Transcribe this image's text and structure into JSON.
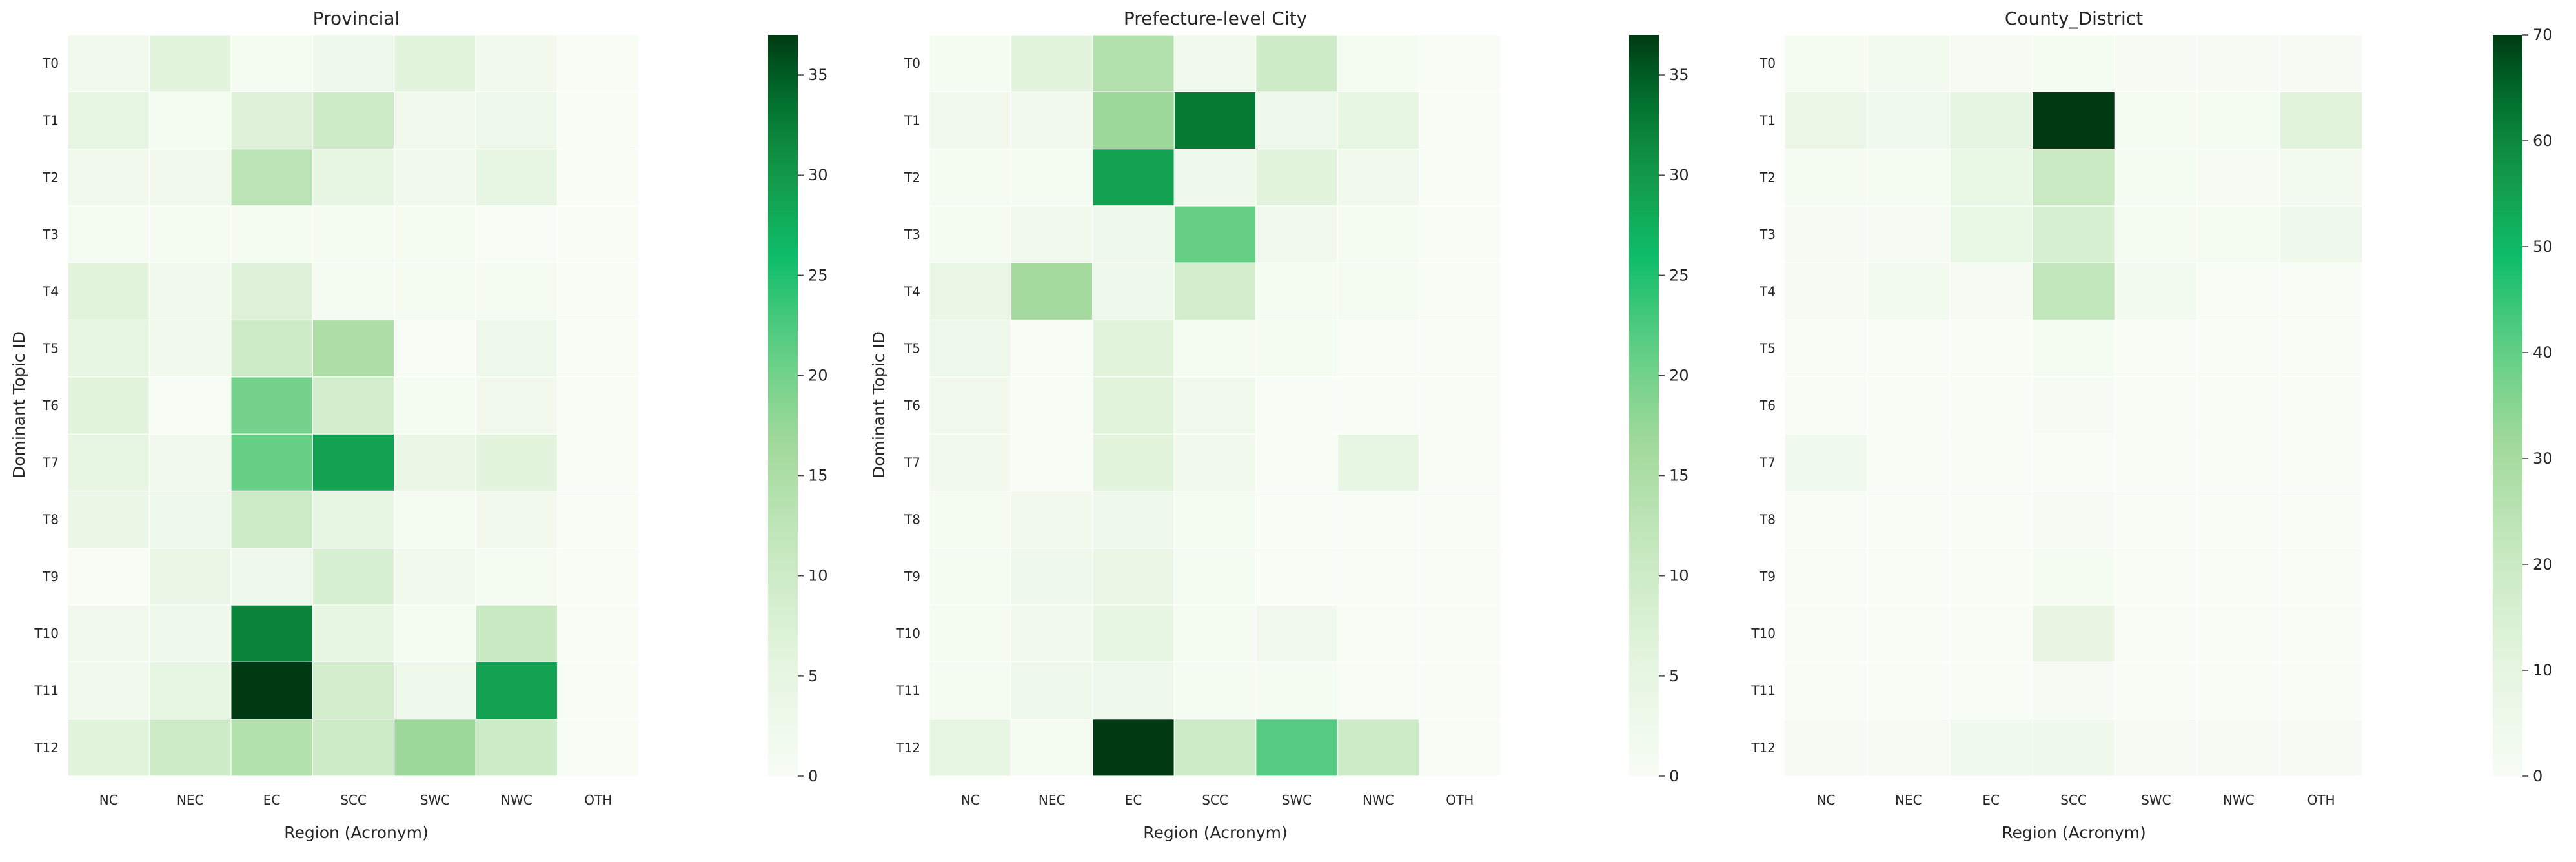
{
  "chart_data": [
    {
      "type": "heatmap",
      "title": "Provincial",
      "xlabel": "Region (Acronym)",
      "ylabel": "Dominant Topic ID",
      "x_categories": [
        "NC",
        "NEC",
        "EC",
        "SCC",
        "SWC",
        "NWC",
        "OTH"
      ],
      "y_categories": [
        "T0",
        "T1",
        "T2",
        "T3",
        "T4",
        "T5",
        "T6",
        "T7",
        "T8",
        "T9",
        "T10",
        "T11",
        "T12"
      ],
      "values": [
        [
          2,
          6,
          1,
          3,
          6,
          2,
          0
        ],
        [
          5,
          1,
          7,
          10,
          2,
          3,
          0
        ],
        [
          2,
          2,
          13,
          5,
          2,
          5,
          0
        ],
        [
          1,
          1,
          1,
          1,
          1,
          0,
          0
        ],
        [
          6,
          2,
          7,
          1,
          1,
          1,
          0
        ],
        [
          5,
          2,
          10,
          15,
          0,
          3,
          0
        ],
        [
          6,
          0,
          20,
          9,
          1,
          2,
          0
        ],
        [
          5,
          2,
          21,
          29,
          4,
          6,
          0
        ],
        [
          4,
          3,
          10,
          5,
          1,
          2,
          0
        ],
        [
          0,
          4,
          3,
          8,
          2,
          1,
          0
        ],
        [
          2,
          3,
          32,
          5,
          1,
          11,
          0
        ],
        [
          2,
          5,
          37,
          9,
          3,
          29,
          0
        ],
        [
          6,
          10,
          14,
          10,
          17,
          10,
          0
        ]
      ],
      "colorbar": {
        "min": 0,
        "max": 37,
        "ticks": [
          0,
          5,
          10,
          15,
          20,
          25,
          30,
          35
        ]
      }
    },
    {
      "type": "heatmap",
      "title": "Prefecture-level City",
      "xlabel": "Region (Acronym)",
      "ylabel": "Dominant Topic ID",
      "x_categories": [
        "NC",
        "NEC",
        "EC",
        "SCC",
        "SWC",
        "NWC",
        "OTH"
      ],
      "y_categories": [
        "T0",
        "T1",
        "T2",
        "T3",
        "T4",
        "T5",
        "T6",
        "T7",
        "T8",
        "T9",
        "T10",
        "T11",
        "T12"
      ],
      "values": [
        [
          1,
          6,
          14,
          2,
          10,
          1,
          0
        ],
        [
          2,
          2,
          17,
          33,
          3,
          5,
          0
        ],
        [
          1,
          1,
          29,
          3,
          6,
          2,
          0
        ],
        [
          1,
          2,
          3,
          21,
          2,
          1,
          0
        ],
        [
          4,
          16,
          3,
          9,
          1,
          1,
          0
        ],
        [
          3,
          0,
          6,
          1,
          1,
          0,
          0
        ],
        [
          2,
          0,
          6,
          2,
          0,
          0,
          0
        ],
        [
          2,
          0,
          6,
          2,
          0,
          5,
          0
        ],
        [
          1,
          2,
          3,
          1,
          0,
          0,
          0
        ],
        [
          1,
          3,
          4,
          1,
          0,
          0,
          0
        ],
        [
          1,
          2,
          5,
          1,
          2,
          0,
          0
        ],
        [
          1,
          3,
          3,
          1,
          1,
          0,
          0
        ],
        [
          5,
          1,
          37,
          10,
          22,
          10,
          0
        ]
      ],
      "colorbar": {
        "min": 0,
        "max": 37,
        "ticks": [
          0,
          5,
          10,
          15,
          20,
          25,
          30,
          35
        ]
      }
    },
    {
      "type": "heatmap",
      "title": "County_District",
      "xlabel": "Region (Acronym)",
      "ylabel": "",
      "x_categories": [
        "NC",
        "NEC",
        "EC",
        "SCC",
        "SWC",
        "NWC",
        "OTH"
      ],
      "y_categories": [
        "T0",
        "T1",
        "T2",
        "T3",
        "T4",
        "T5",
        "T6",
        "T7",
        "T8",
        "T9",
        "T10",
        "T11",
        "T12"
      ],
      "values": [
        [
          2,
          3,
          1,
          2,
          1,
          1,
          1
        ],
        [
          7,
          4,
          10,
          70,
          2,
          2,
          12
        ],
        [
          2,
          2,
          8,
          20,
          2,
          1,
          3
        ],
        [
          1,
          1,
          8,
          15,
          2,
          2,
          5
        ],
        [
          1,
          3,
          1,
          22,
          3,
          0,
          0
        ],
        [
          0,
          0,
          0,
          2,
          0,
          0,
          0
        ],
        [
          0,
          0,
          0,
          1,
          0,
          0,
          0
        ],
        [
          4,
          0,
          0,
          0,
          0,
          0,
          0
        ],
        [
          0,
          0,
          0,
          1,
          0,
          0,
          0
        ],
        [
          0,
          0,
          0,
          2,
          0,
          0,
          0
        ],
        [
          0,
          0,
          0,
          9,
          0,
          0,
          0
        ],
        [
          0,
          0,
          0,
          1,
          0,
          0,
          0
        ],
        [
          1,
          1,
          4,
          5,
          1,
          1,
          1
        ]
      ],
      "colorbar": {
        "min": 0,
        "max": 70,
        "ticks": [
          0,
          10,
          20,
          30,
          40,
          50,
          60,
          70
        ]
      }
    }
  ]
}
